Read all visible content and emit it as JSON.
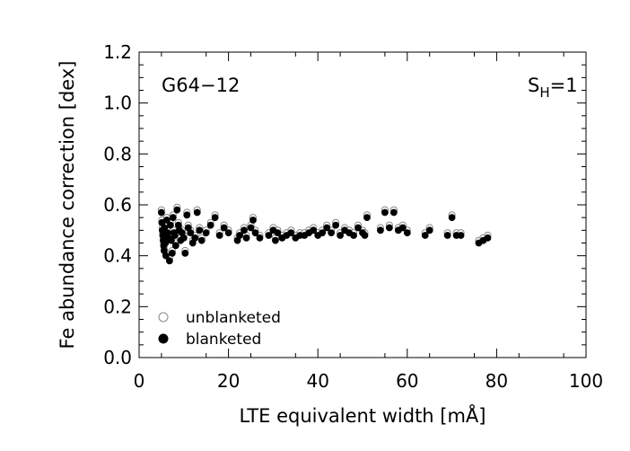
{
  "chart_data": {
    "type": "scatter",
    "title": "",
    "xlabel": "LTE equivalent width [mÅ]",
    "ylabel": "Fe abundance correction [dex]",
    "xlim": [
      0,
      100
    ],
    "ylim": [
      0,
      1.2
    ],
    "x_ticks": [
      "0",
      "20",
      "40",
      "60",
      "80",
      "100"
    ],
    "y_ticks": [
      "0.0",
      "0.2",
      "0.4",
      "0.6",
      "0.8",
      "1.0",
      "1.2"
    ],
    "grid": false,
    "legend_position": "bottom-left",
    "annotations": {
      "star": "G64−12",
      "sh_prefix": "S",
      "sh_sub": "H",
      "sh_suffix": "=1"
    },
    "series": [
      {
        "name": "unblanketed",
        "marker": "open-circle",
        "color": "#888888",
        "x": [
          5.0,
          5.1,
          5.2,
          5.3,
          5.4,
          5.5,
          5.6,
          5.7,
          5.8,
          5.9,
          6.0,
          6.2,
          6.4,
          6.6,
          6.8,
          7.0,
          7.2,
          7.4,
          7.6,
          7.8,
          8.0,
          8.2,
          8.5,
          8.8,
          9.0,
          9.3,
          9.6,
          10.0,
          10.3,
          10.7,
          11.0,
          11.5,
          12.0,
          12.5,
          13.0,
          13.5,
          14.0,
          15.0,
          16.0,
          17.0,
          18.0,
          19.0,
          20.0,
          22.0,
          22.5,
          23.5,
          24.0,
          25.0,
          25.5,
          26.0,
          27.0,
          29.0,
          30.0,
          30.5,
          31.0,
          32.0,
          33.0,
          34.0,
          35.0,
          36.0,
          37.0,
          38.0,
          39.0,
          40.0,
          41.0,
          42.0,
          43.0,
          44.0,
          45.0,
          46.0,
          47.0,
          48.0,
          49.0,
          50.0,
          50.5,
          51.0,
          54.0,
          55.0,
          56.0,
          57.0,
          58.0,
          59.0,
          60.0,
          64.0,
          65.0,
          69.0,
          70.0,
          71.0,
          72.0,
          76.0,
          77.0,
          78.0
        ],
        "y": [
          0.58,
          0.54,
          0.51,
          0.49,
          0.47,
          0.45,
          0.43,
          0.52,
          0.49,
          0.46,
          0.41,
          0.55,
          0.5,
          0.48,
          0.39,
          0.53,
          0.47,
          0.42,
          0.56,
          0.5,
          0.49,
          0.45,
          0.59,
          0.53,
          0.51,
          0.47,
          0.5,
          0.48,
          0.42,
          0.57,
          0.52,
          0.5,
          0.46,
          0.48,
          0.58,
          0.51,
          0.47,
          0.5,
          0.53,
          0.56,
          0.49,
          0.52,
          0.5,
          0.47,
          0.49,
          0.51,
          0.48,
          0.52,
          0.55,
          0.5,
          0.48,
          0.49,
          0.51,
          0.47,
          0.5,
          0.48,
          0.49,
          0.5,
          0.48,
          0.49,
          0.49,
          0.5,
          0.51,
          0.49,
          0.5,
          0.52,
          0.5,
          0.53,
          0.49,
          0.51,
          0.5,
          0.49,
          0.52,
          0.5,
          0.49,
          0.56,
          0.51,
          0.58,
          0.52,
          0.58,
          0.51,
          0.52,
          0.5,
          0.49,
          0.51,
          0.49,
          0.56,
          0.49,
          0.49,
          0.46,
          0.47,
          0.48
        ]
      },
      {
        "name": "blanketed",
        "marker": "filled-circle",
        "color": "#000000",
        "x": [
          5.0,
          5.1,
          5.2,
          5.3,
          5.4,
          5.5,
          5.6,
          5.7,
          5.8,
          5.9,
          6.0,
          6.2,
          6.4,
          6.6,
          6.8,
          7.0,
          7.2,
          7.4,
          7.6,
          7.8,
          8.0,
          8.2,
          8.5,
          8.8,
          9.0,
          9.3,
          9.6,
          10.0,
          10.3,
          10.7,
          11.0,
          11.5,
          12.0,
          12.5,
          13.0,
          13.5,
          14.0,
          15.0,
          16.0,
          17.0,
          18.0,
          19.0,
          20.0,
          22.0,
          22.5,
          23.5,
          24.0,
          25.0,
          25.5,
          26.0,
          27.0,
          29.0,
          30.0,
          30.5,
          31.0,
          32.0,
          33.0,
          34.0,
          35.0,
          36.0,
          37.0,
          38.0,
          39.0,
          40.0,
          41.0,
          42.0,
          43.0,
          44.0,
          45.0,
          46.0,
          47.0,
          48.0,
          49.0,
          50.0,
          50.5,
          51.0,
          54.0,
          55.0,
          56.0,
          57.0,
          58.0,
          59.0,
          60.0,
          64.0,
          65.0,
          69.0,
          70.0,
          71.0,
          72.0,
          76.0,
          77.0,
          78.0
        ],
        "y": [
          0.57,
          0.53,
          0.5,
          0.48,
          0.46,
          0.44,
          0.42,
          0.51,
          0.48,
          0.45,
          0.4,
          0.54,
          0.49,
          0.47,
          0.38,
          0.52,
          0.46,
          0.41,
          0.55,
          0.49,
          0.48,
          0.44,
          0.58,
          0.52,
          0.5,
          0.46,
          0.49,
          0.47,
          0.41,
          0.56,
          0.51,
          0.49,
          0.45,
          0.47,
          0.57,
          0.5,
          0.46,
          0.49,
          0.52,
          0.55,
          0.48,
          0.51,
          0.49,
          0.46,
          0.48,
          0.5,
          0.47,
          0.51,
          0.54,
          0.49,
          0.47,
          0.48,
          0.5,
          0.46,
          0.49,
          0.47,
          0.48,
          0.49,
          0.47,
          0.48,
          0.48,
          0.49,
          0.5,
          0.48,
          0.49,
          0.51,
          0.49,
          0.52,
          0.48,
          0.5,
          0.49,
          0.48,
          0.51,
          0.49,
          0.48,
          0.55,
          0.5,
          0.57,
          0.51,
          0.57,
          0.5,
          0.51,
          0.49,
          0.48,
          0.5,
          0.48,
          0.55,
          0.48,
          0.48,
          0.45,
          0.46,
          0.47
        ]
      }
    ]
  }
}
